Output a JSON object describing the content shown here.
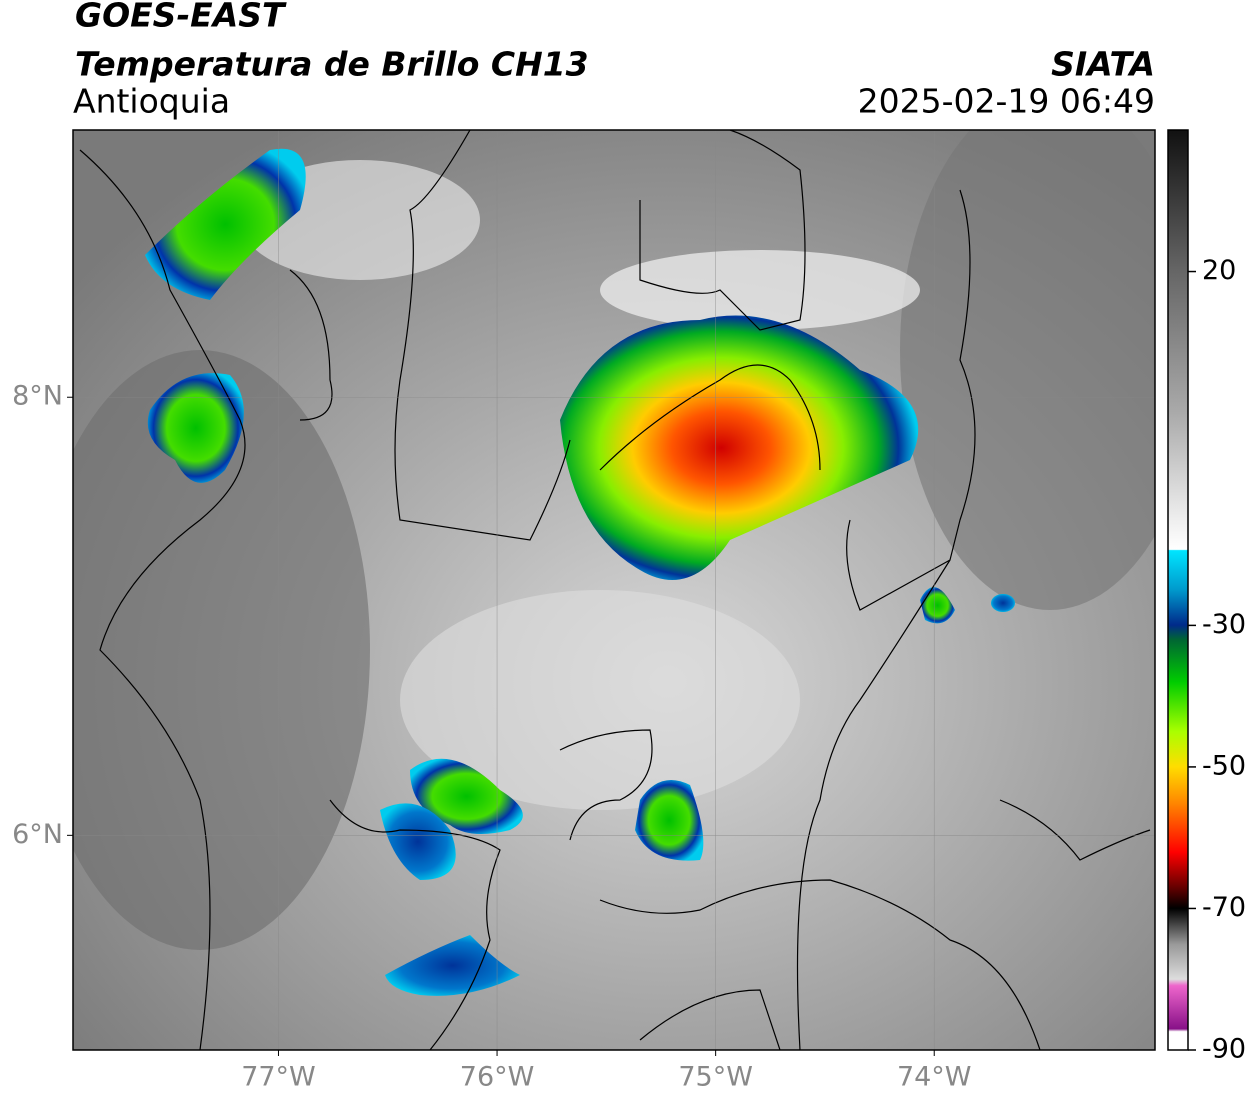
{
  "header": {
    "title": "GOES-EAST",
    "subtitle": "Temperatura de Brillo CH13",
    "region": "Antioquia",
    "source": "SIATA",
    "datetime": "2025-02-19 06:49"
  },
  "map": {
    "xlim": [
      -77.94,
      -72.99
    ],
    "ylim": [
      5.02,
      9.22
    ],
    "xticks": [
      {
        "value": -77,
        "label": "77°W"
      },
      {
        "value": -76,
        "label": "76°W"
      },
      {
        "value": -75,
        "label": "75°W"
      },
      {
        "value": -74,
        "label": "74°W"
      }
    ],
    "yticks": [
      {
        "value": 8,
        "label": "8°N"
      },
      {
        "value": 6,
        "label": "6°N"
      }
    ],
    "grid": true
  },
  "colorbar": {
    "lim": [
      -90,
      40
    ],
    "ticks": [
      20,
      -30,
      -50,
      -70,
      -90
    ]
  }
}
